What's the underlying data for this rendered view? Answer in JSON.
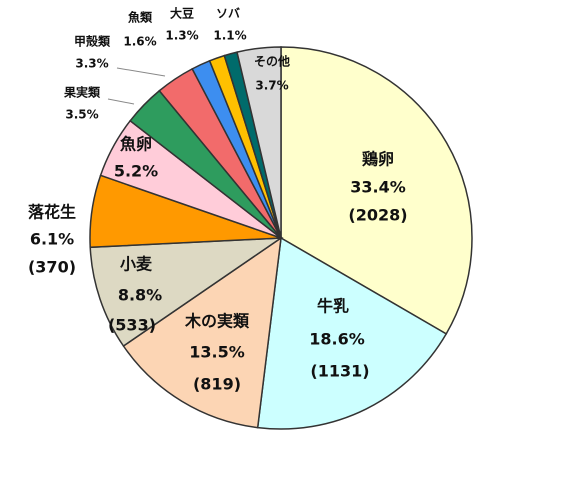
{
  "chart_data": {
    "type": "pie",
    "categories": [
      "鶏卵",
      "牛乳",
      "木の実類",
      "小麦",
      "落花生",
      "魚卵",
      "果実類",
      "甲殻類",
      "魚類",
      "大豆",
      "ソバ",
      "その他"
    ],
    "values": [
      33.4,
      18.6,
      13.5,
      8.8,
      6.1,
      5.2,
      3.5,
      3.3,
      1.6,
      1.3,
      1.1,
      3.7
    ],
    "value_labels": [
      "33.4%",
      "18.6%",
      "13.5%",
      "8.8%",
      "6.1%",
      "5.2%",
      "3.5%",
      "3.3%",
      "1.6%",
      "1.3%",
      "1.1%",
      "3.7%"
    ],
    "count_labels": [
      "(2028)",
      "(1131)",
      "(819)",
      "(533)",
      "(370)",
      null,
      null,
      null,
      null,
      null,
      null,
      null
    ],
    "colors": [
      "#ffffcc",
      "#ccffff",
      "#fcd5b4",
      "#ddd9c3",
      "#ff9900",
      "#ffccd9",
      "#2e9c5e",
      "#f26b6b",
      "#3d8ef0",
      "#ffc000",
      "#006b6b",
      "#d9d9d9"
    ]
  }
}
